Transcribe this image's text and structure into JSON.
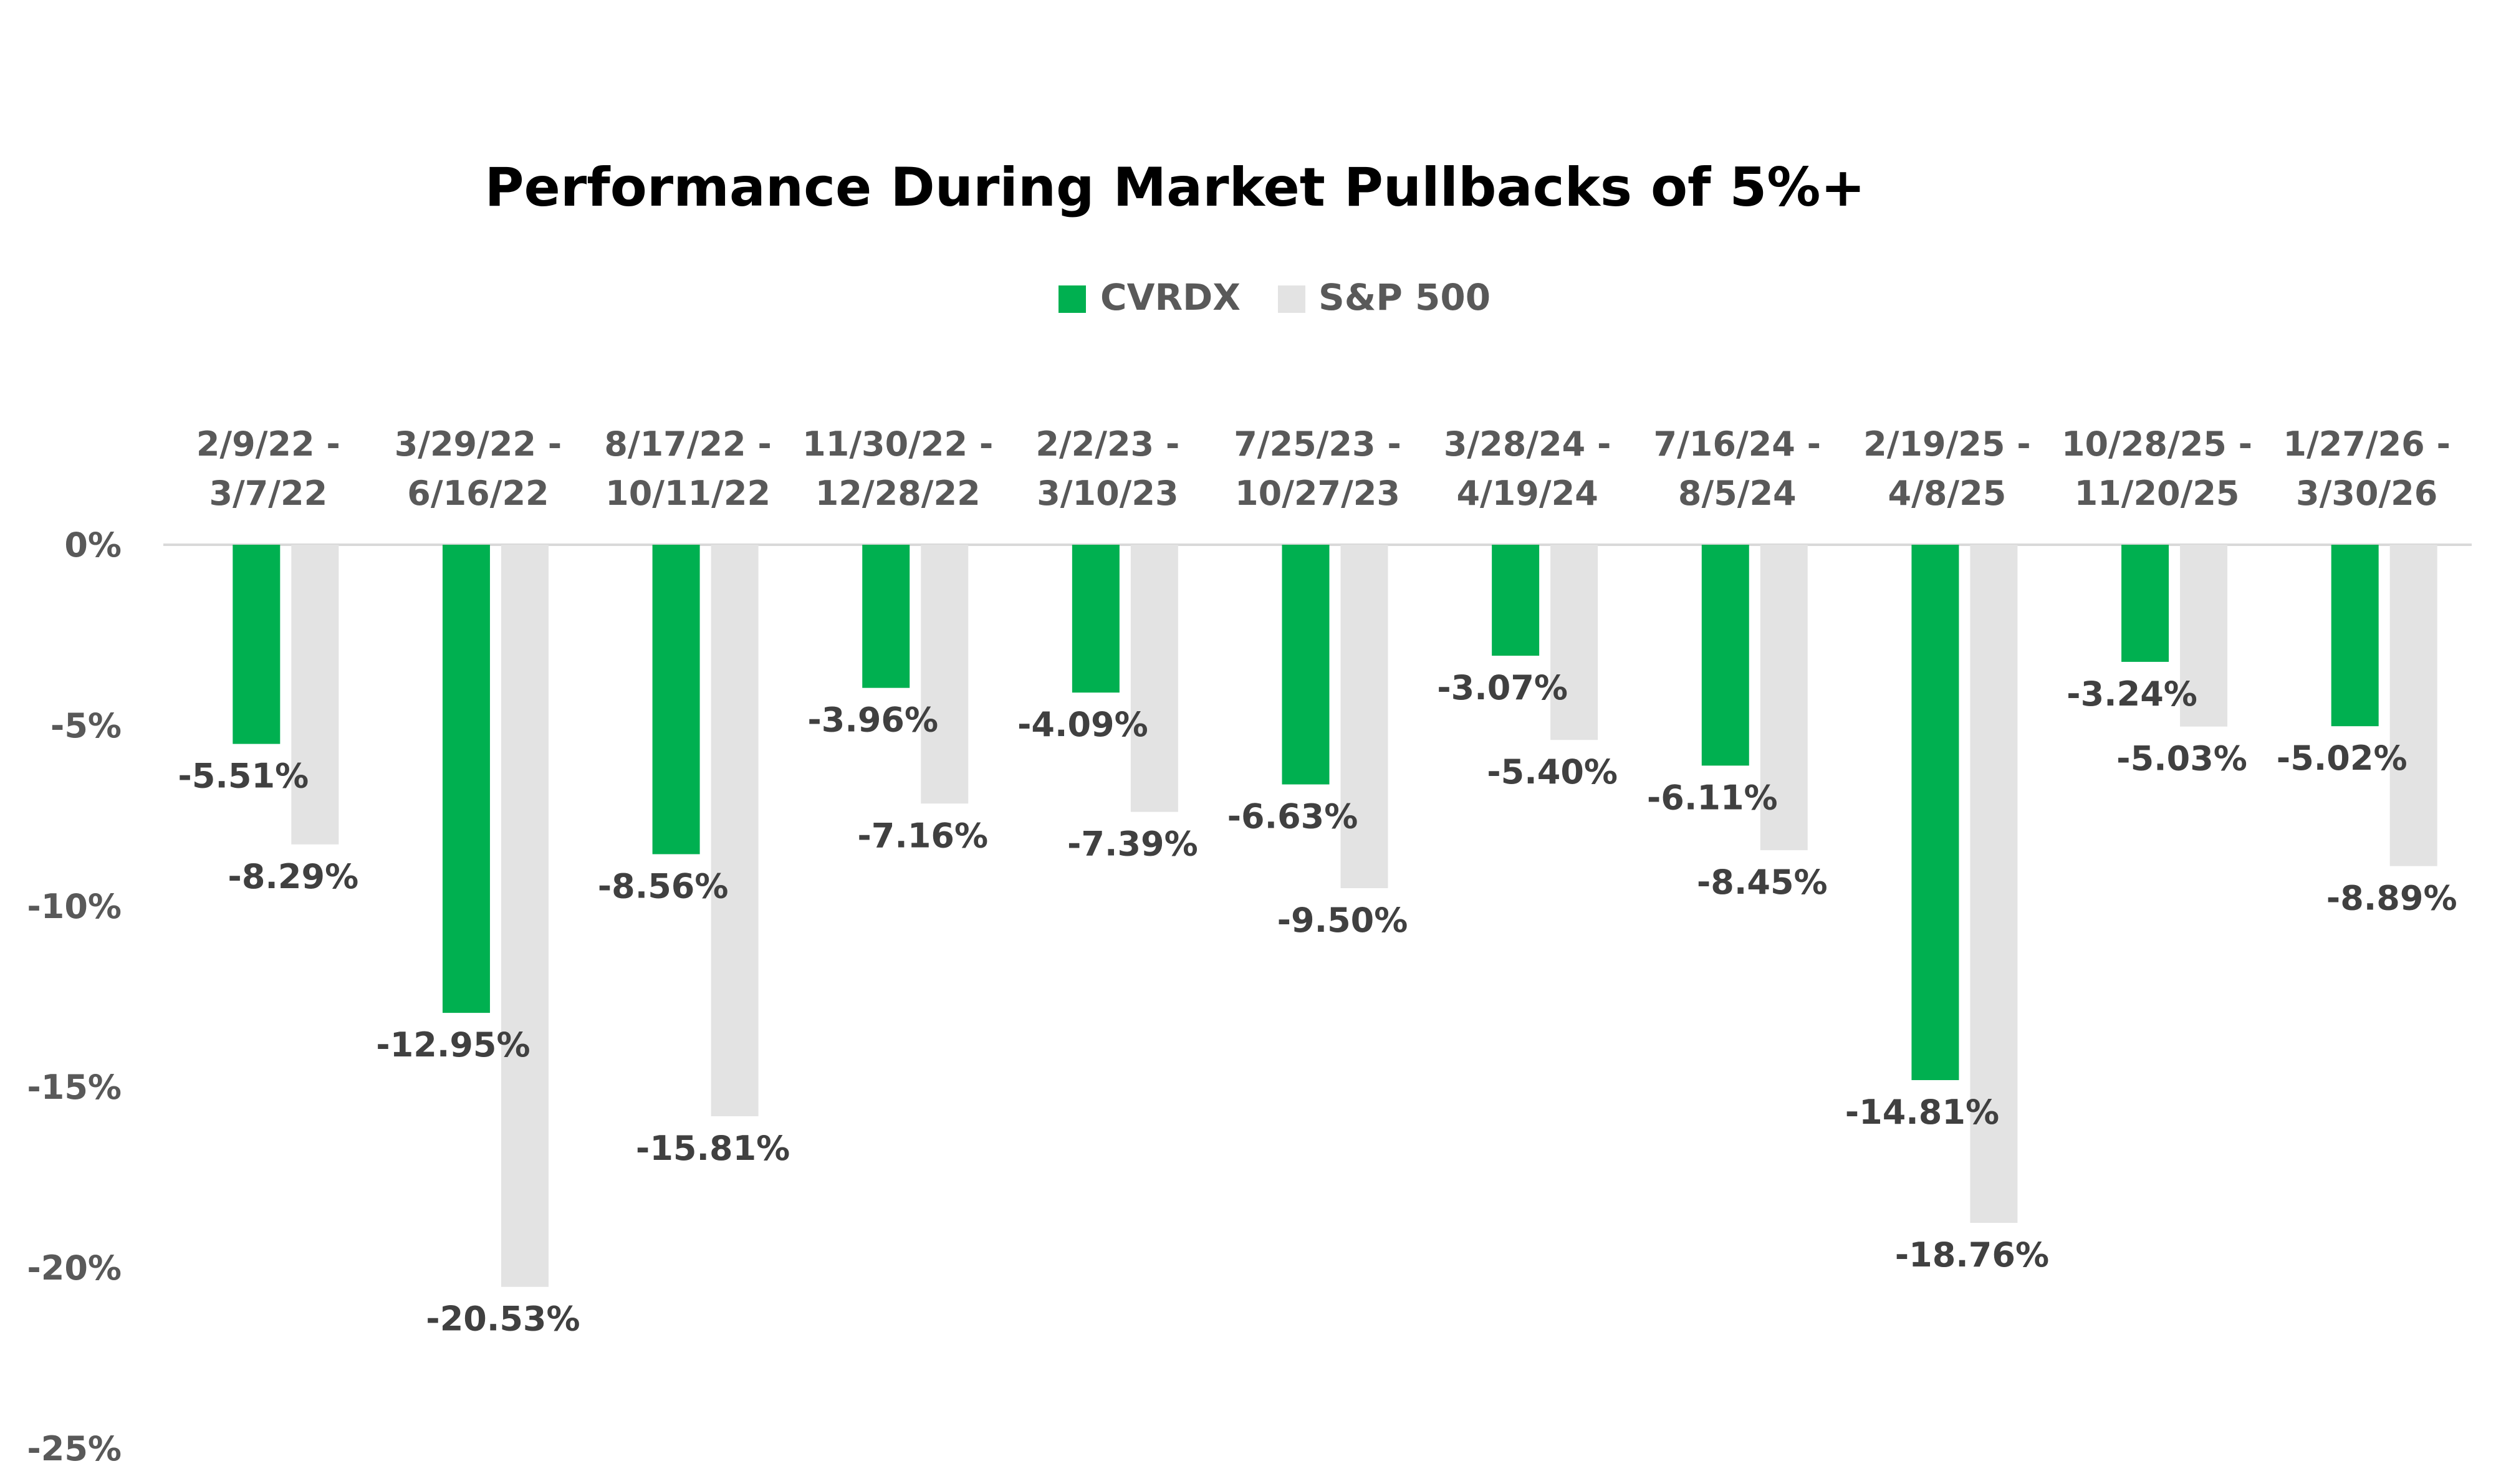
{
  "chart_data": {
    "type": "bar",
    "title": "Performance During Market Pullbacks of 5%+",
    "categories": [
      [
        "2/9/22  -",
        "3/7/22"
      ],
      [
        "3/29/22 -",
        "6/16/22"
      ],
      [
        "8/17/22 -",
        "10/11/22"
      ],
      [
        "11/30/22 -",
        "12/28/22"
      ],
      [
        "2/2/23 -",
        "3/10/23"
      ],
      [
        "7/25/23 -",
        "10/27/23"
      ],
      [
        "3/28/24 -",
        "4/19/24"
      ],
      [
        "7/16/24 -",
        "8/5/24"
      ],
      [
        "2/19/25 -",
        "4/8/25"
      ],
      [
        "10/28/25 -",
        "11/20/25"
      ],
      [
        "1/27/26 -",
        "3/30/26"
      ]
    ],
    "series": [
      {
        "name": "CVRDX",
        "color": "#00b050",
        "values": [
          -5.51,
          -12.95,
          -8.56,
          -3.96,
          -4.09,
          -6.63,
          -3.07,
          -6.11,
          -14.81,
          -3.24,
          -5.02
        ],
        "labels": [
          "-5.51%",
          "-12.95%",
          "-8.56%",
          "-3.96%",
          "-4.09%",
          "-6.63%",
          "-3.07%",
          "-6.11%",
          "-14.81%",
          "-3.24%",
          "-5.02%"
        ]
      },
      {
        "name": "S&P 500",
        "color": "#e3e3e3",
        "values": [
          -8.29,
          -20.53,
          -15.81,
          -7.16,
          -7.39,
          -9.5,
          -5.4,
          -8.45,
          -18.76,
          -5.03,
          -8.89
        ],
        "labels": [
          "-8.29%",
          "-20.53%",
          "-15.81%",
          "-7.16%",
          "-7.39%",
          "-9.50%",
          "-5.40%",
          "-8.45%",
          "-18.76%",
          "-5.03%",
          "-8.89%"
        ]
      }
    ],
    "yticks": [
      0,
      -5,
      -10,
      -15,
      -20,
      -25
    ],
    "ytick_labels": [
      "0%",
      "-5%",
      "-10%",
      "-15%",
      "-20%",
      "-25%"
    ],
    "ylim": [
      -25,
      0
    ],
    "xaxis_position": "top",
    "grid": false,
    "legend_position": "top"
  }
}
